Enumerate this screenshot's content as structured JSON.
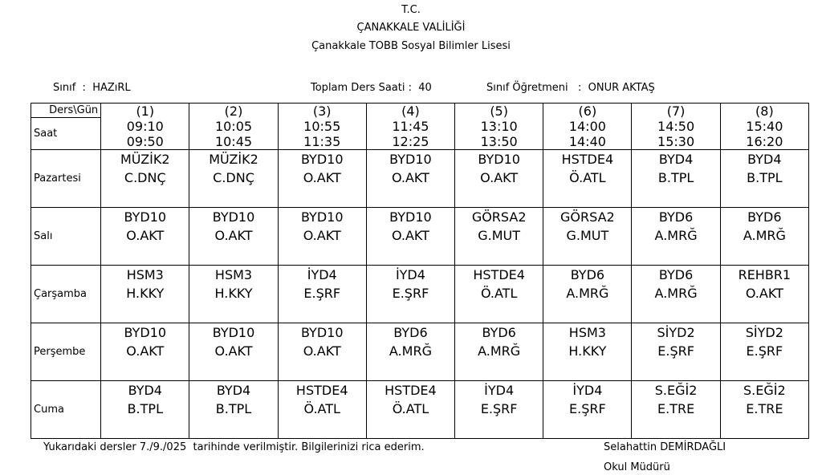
{
  "header": {
    "line1": "T.C.",
    "line2": "ÇANAKKALE VALİLİĞİ",
    "line3": "Çanakkale TOBB Sosyal Bilimler Lisesi"
  },
  "info": {
    "class_label": "Sınıf  :  HAZıRL",
    "total_label": "Toplam Ders Saati :  40",
    "teacher_label": "Sınıf Öğretmeni   :  ONUR AKTAŞ"
  },
  "table": {
    "corner": "Ders\\Gün",
    "time_label": "Saat",
    "periods": [
      {
        "num": "(1)",
        "start": "09:10",
        "end": "09:50"
      },
      {
        "num": "(2)",
        "start": "10:05",
        "end": "10:45"
      },
      {
        "num": "(3)",
        "start": "10:55",
        "end": "11:35"
      },
      {
        "num": "(4)",
        "start": "11:45",
        "end": "12:25"
      },
      {
        "num": "(5)",
        "start": "13:10",
        "end": "13:50"
      },
      {
        "num": "(6)",
        "start": "14:00",
        "end": "14:40"
      },
      {
        "num": "(7)",
        "start": "14:50",
        "end": "15:30"
      },
      {
        "num": "(8)",
        "start": "15:40",
        "end": "16:20"
      }
    ],
    "days": [
      {
        "name": "Pazartesi",
        "lessons": [
          [
            "MÜZİK2",
            "C.DNÇ"
          ],
          [
            "MÜZİK2",
            "C.DNÇ"
          ],
          [
            "BYD10",
            "O.AKT"
          ],
          [
            "BYD10",
            "O.AKT"
          ],
          [
            "BYD10",
            "O.AKT"
          ],
          [
            "HSTDE4",
            "Ö.ATL"
          ],
          [
            "BYD4",
            "B.TPL"
          ],
          [
            "BYD4",
            "B.TPL"
          ]
        ]
      },
      {
        "name": "Salı",
        "lessons": [
          [
            "BYD10",
            "O.AKT"
          ],
          [
            "BYD10",
            "O.AKT"
          ],
          [
            "BYD10",
            "O.AKT"
          ],
          [
            "BYD10",
            "O.AKT"
          ],
          [
            "GÖRSA2",
            "G.MUT"
          ],
          [
            "GÖRSA2",
            "G.MUT"
          ],
          [
            "BYD6",
            "A.MRĞ"
          ],
          [
            "BYD6",
            "A.MRĞ"
          ]
        ]
      },
      {
        "name": "Çarşamba",
        "lessons": [
          [
            "HSM3",
            "H.KKY"
          ],
          [
            "HSM3",
            "H.KKY"
          ],
          [
            "İYD4",
            "E.ŞRF"
          ],
          [
            "İYD4",
            "E.ŞRF"
          ],
          [
            "HSTDE4",
            "Ö.ATL"
          ],
          [
            "BYD6",
            "A.MRĞ"
          ],
          [
            "BYD6",
            "A.MRĞ"
          ],
          [
            "REHBR1",
            "O.AKT"
          ]
        ]
      },
      {
        "name": "Perşembe",
        "lessons": [
          [
            "BYD10",
            "O.AKT"
          ],
          [
            "BYD10",
            "O.AKT"
          ],
          [
            "BYD10",
            "O.AKT"
          ],
          [
            "BYD6",
            "A.MRĞ"
          ],
          [
            "BYD6",
            "A.MRĞ"
          ],
          [
            "HSM3",
            "H.KKY"
          ],
          [
            "SİYD2",
            "E.ŞRF"
          ],
          [
            "SİYD2",
            "E.ŞRF"
          ]
        ]
      },
      {
        "name": "Cuma",
        "lessons": [
          [
            "BYD4",
            "B.TPL"
          ],
          [
            "BYD4",
            "B.TPL"
          ],
          [
            "HSTDE4",
            "Ö.ATL"
          ],
          [
            "HSTDE4",
            "Ö.ATL"
          ],
          [
            "İYD4",
            "E.ŞRF"
          ],
          [
            "İYD4",
            "E.ŞRF"
          ],
          [
            "S.EĞİ2",
            "E.TRE"
          ],
          [
            "S.EĞİ2",
            "E.TRE"
          ]
        ]
      }
    ]
  },
  "footer": {
    "note": "Yukarıdaki dersler 7./9./025  tarihinde verilmiştir. Bilgilerinizi rica ederim.",
    "signer": "Selahattin DEMİRDAĞLI",
    "signer_title": "Okul Müdürü"
  }
}
